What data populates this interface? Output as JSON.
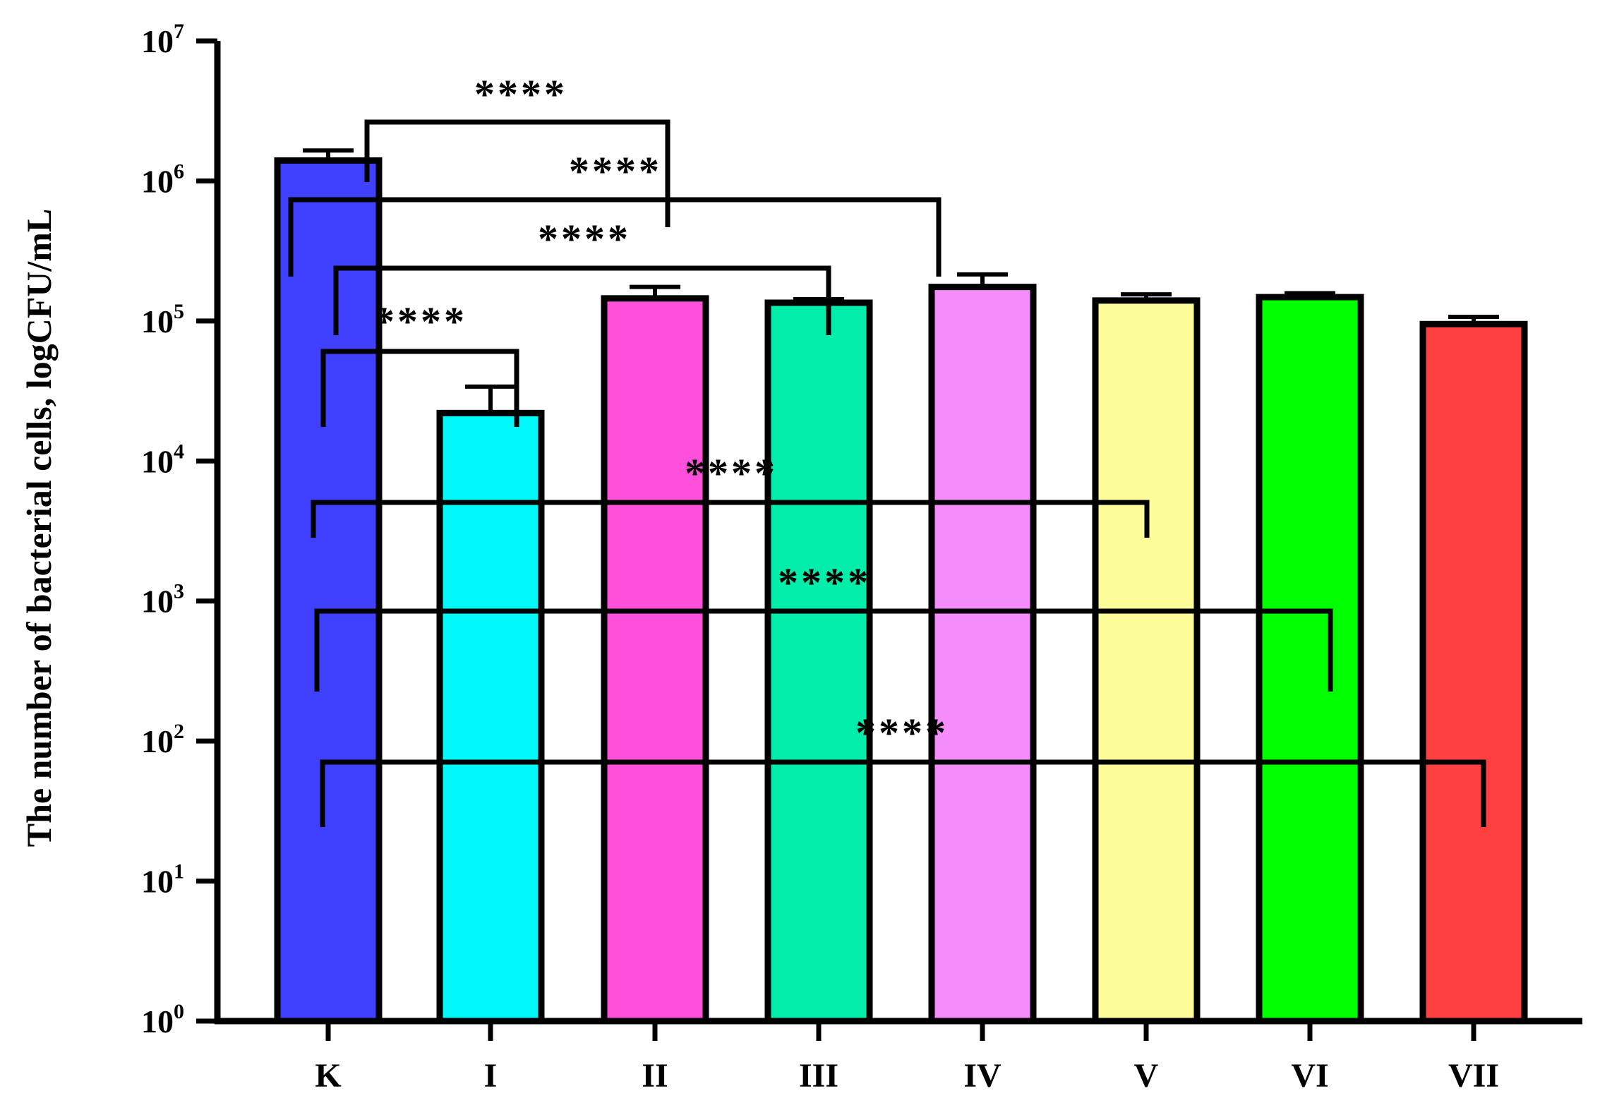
{
  "chart_data": {
    "type": "bar",
    "ylabel": "The number of bacterial cells, logCFU/mL",
    "yscale": "log",
    "ylim": [
      1,
      10000000
    ],
    "y_ticks": [
      {
        "base": "10",
        "exp": "0"
      },
      {
        "base": "10",
        "exp": "1"
      },
      {
        "base": "10",
        "exp": "2"
      },
      {
        "base": "10",
        "exp": "3"
      },
      {
        "base": "10",
        "exp": "4"
      },
      {
        "base": "10",
        "exp": "5"
      },
      {
        "base": "10",
        "exp": "6"
      },
      {
        "base": "10",
        "exp": "7"
      }
    ],
    "categories": [
      "K",
      "I",
      "II",
      "III",
      "IV",
      "V",
      "VI",
      "VII"
    ],
    "values": [
      1400000,
      22000,
      145000,
      135000,
      175000,
      140000,
      148000,
      95000
    ],
    "errors": [
      250000,
      12000,
      30000,
      8000,
      40000,
      15000,
      10000,
      12000
    ],
    "colors": [
      "#4040ff",
      "#00f8f8",
      "#ff50dc",
      "#00eeaa",
      "#f48cfc",
      "#fcfc98",
      "#00ff00",
      "#ff4040"
    ],
    "significance": [
      {
        "from": "K",
        "to": "II",
        "label": "****"
      },
      {
        "from": "K",
        "to": "IV",
        "label": "****"
      },
      {
        "from": "K",
        "to": "III",
        "label": "****"
      },
      {
        "from": "K",
        "to": "I",
        "label": "****"
      },
      {
        "from": "K",
        "to": "V",
        "label": "****"
      },
      {
        "from": "K",
        "to": "VI",
        "label": "****"
      },
      {
        "from": "K",
        "to": "VII",
        "label": "****"
      }
    ],
    "grid": false,
    "legend": "none"
  }
}
